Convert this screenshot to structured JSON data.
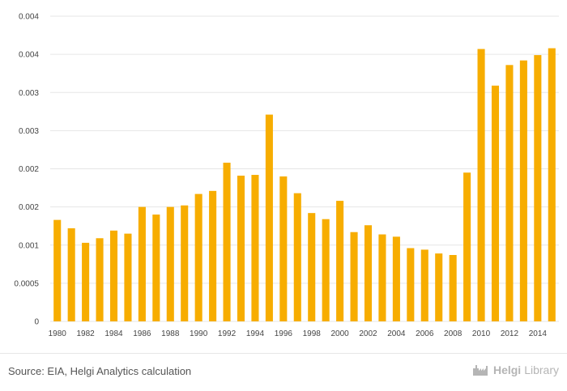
{
  "chart_data": {
    "type": "bar",
    "title": "",
    "xlabel": "",
    "ylabel": "",
    "ylim": [
      0,
      0.004
    ],
    "ytick_values": [
      0,
      0.0005,
      0.001,
      0.0015,
      0.002,
      0.0025,
      0.003,
      0.0035,
      0.004
    ],
    "ytick_labels": [
      "0",
      "0.0005",
      "0.001",
      "0.002",
      "0.002",
      "0.003",
      "0.003",
      "0.004",
      "0.004"
    ],
    "categories": [
      "1980",
      "1981",
      "1982",
      "1983",
      "1984",
      "1985",
      "1986",
      "1987",
      "1988",
      "1989",
      "1990",
      "1991",
      "1992",
      "1993",
      "1994",
      "1995",
      "1996",
      "1997",
      "1998",
      "1999",
      "2000",
      "2001",
      "2002",
      "2003",
      "2004",
      "2005",
      "2006",
      "2007",
      "2008",
      "2009",
      "2010",
      "2011",
      "2012",
      "2013",
      "2014",
      "2015"
    ],
    "xtick_labels": [
      "1980",
      "",
      "1982",
      "",
      "1984",
      "",
      "1986",
      "",
      "1988",
      "",
      "1990",
      "",
      "1992",
      "",
      "1994",
      "",
      "1996",
      "",
      "1998",
      "",
      "2000",
      "",
      "2002",
      "",
      "2004",
      "",
      "2006",
      "",
      "2008",
      "",
      "2010",
      "",
      "2012",
      "",
      "2014",
      ""
    ],
    "values": [
      0.00133,
      0.00122,
      0.00103,
      0.00109,
      0.00119,
      0.00115,
      0.0015,
      0.0014,
      0.0015,
      0.00152,
      0.00167,
      0.00171,
      0.00208,
      0.00191,
      0.00192,
      0.00271,
      0.0019,
      0.00168,
      0.00142,
      0.00134,
      0.00158,
      0.00117,
      0.00126,
      0.00114,
      0.00111,
      0.00096,
      0.00094,
      0.00089,
      0.00087,
      0.00195,
      0.00357,
      0.00309,
      0.00336,
      0.00342,
      0.00349,
      0.00358
    ],
    "bar_color": "#F7AD00",
    "grid": true
  },
  "footer": {
    "source": "Source: EIA, Helgi Analytics calculation",
    "brand_part1": "Helgi",
    "brand_part2": "Library",
    "brand_color": "#b5b5b5"
  }
}
